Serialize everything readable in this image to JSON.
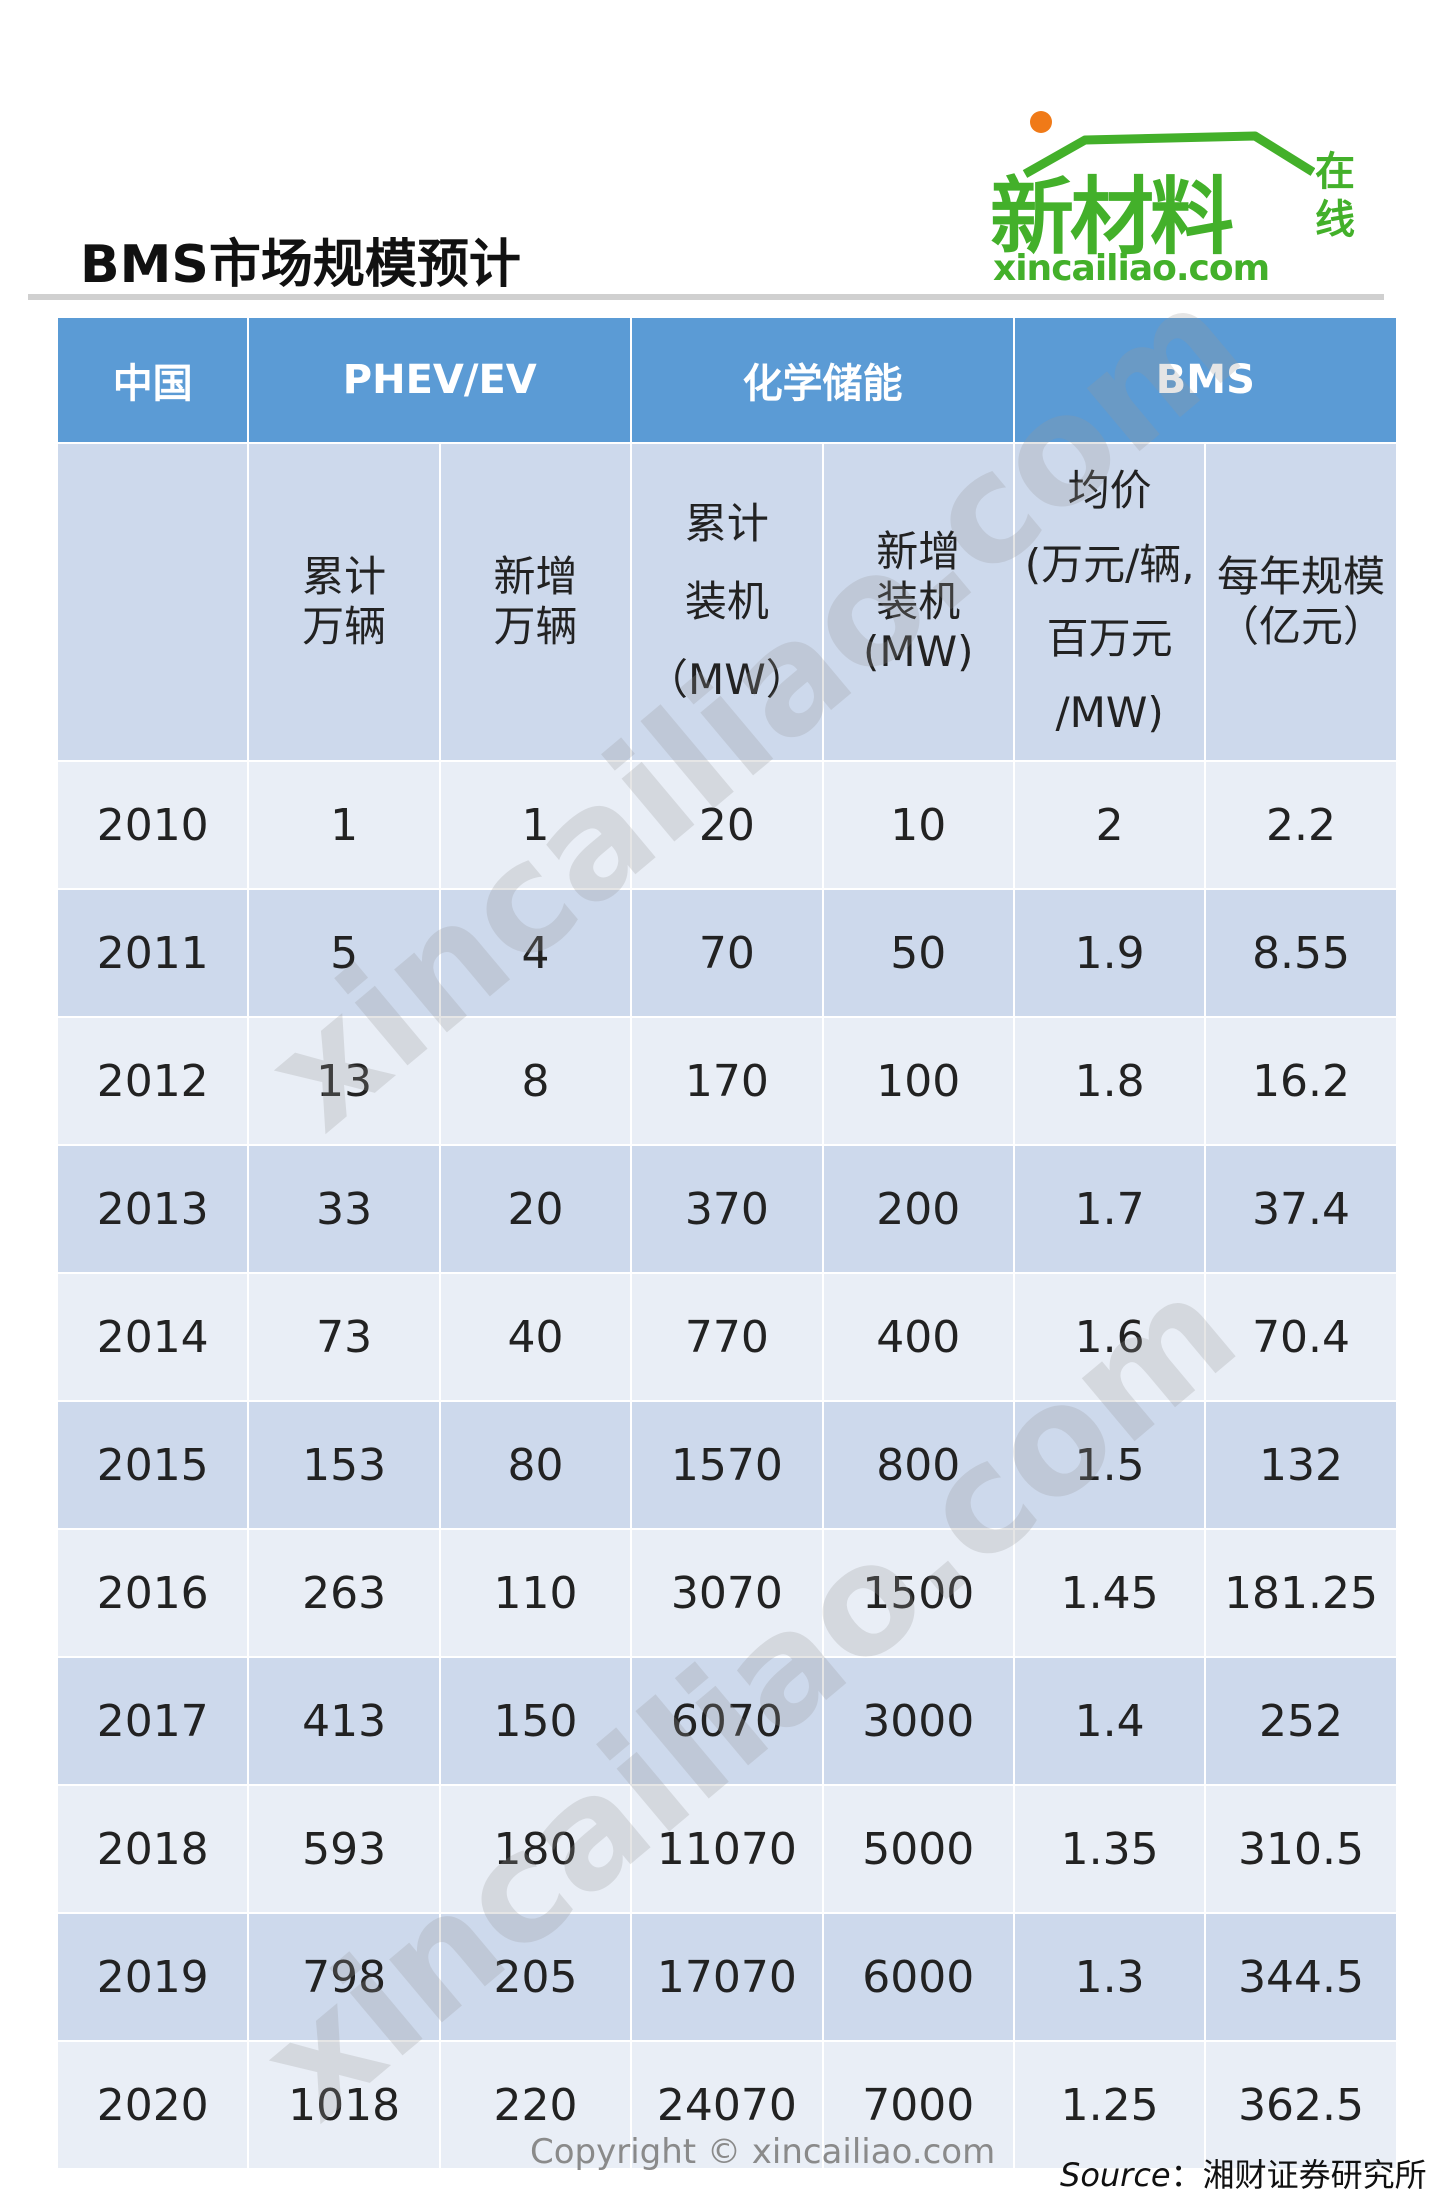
{
  "title": "BMS市场规模预计",
  "logo": {
    "main": "新材料",
    "side": "在线",
    "url": "xincailiao.com"
  },
  "header": [
    "中国",
    "PHEV/EV",
    "化学储能",
    "BMS"
  ],
  "subheader": [
    "",
    "累计\n万辆",
    "新增\n万辆",
    "累计\n装机\n（MW）",
    "新增\n装机\n(MW)",
    "均价\n(万元/辆,\n百万元\n/MW)",
    "每年规模\n（亿元）"
  ],
  "rows": [
    [
      "2010",
      "1",
      "1",
      "20",
      "10",
      "2",
      "2.2"
    ],
    [
      "2011",
      "5",
      "4",
      "70",
      "50",
      "1.9",
      "8.55"
    ],
    [
      "2012",
      "13",
      "8",
      "170",
      "100",
      "1.8",
      "16.2"
    ],
    [
      "2013",
      "33",
      "20",
      "370",
      "200",
      "1.7",
      "37.4"
    ],
    [
      "2014",
      "73",
      "40",
      "770",
      "400",
      "1.6",
      "70.4"
    ],
    [
      "2015",
      "153",
      "80",
      "1570",
      "800",
      "1.5",
      "132"
    ],
    [
      "2016",
      "263",
      "110",
      "3070",
      "1500",
      "1.45",
      "181.25"
    ],
    [
      "2017",
      "413",
      "150",
      "6070",
      "3000",
      "1.4",
      "252"
    ],
    [
      "2018",
      "593",
      "180",
      "11070",
      "5000",
      "1.35",
      "310.5"
    ],
    [
      "2019",
      "798",
      "205",
      "17070",
      "6000",
      "1.3",
      "344.5"
    ],
    [
      "2020",
      "1018",
      "220",
      "24070",
      "7000",
      "1.25",
      "362.5"
    ]
  ],
  "watermark": "xincailiao.com",
  "copyright": "Copyright © xincailiao.com",
  "source_label": "Source",
  "source_text": "：湘财证券研究所",
  "colors": {
    "header_bg": "#5b9bd5",
    "row_light": "#e9eef6",
    "row_dark": "#cdd9ec",
    "logo_green": "#43b02a",
    "logo_orange": "#f07a18"
  }
}
